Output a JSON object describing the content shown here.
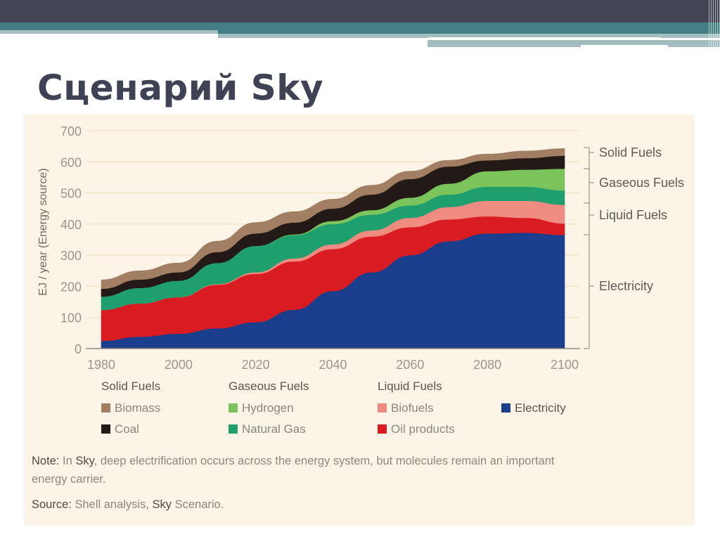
{
  "slide": {
    "title": "Сценарий Sky"
  },
  "colors": {
    "biomass": "#a27e63",
    "coal": "#231a17",
    "hydrogen": "#7bc35b",
    "natural_gas": "#1f9e6e",
    "biofuels": "#f08b82",
    "oil_products": "#d81c22",
    "electricity": "#1b3e8c",
    "panel_bg": "#fcf5e7",
    "header_dark": "#434555",
    "header_teal": "#437f84"
  },
  "legend": {
    "groups": [
      {
        "label": "Solid Fuels",
        "items": [
          {
            "label": "Biomass",
            "key": "biomass"
          },
          {
            "label": "Coal",
            "key": "coal"
          }
        ]
      },
      {
        "label": "Gaseous Fuels",
        "items": [
          {
            "label": "Hydrogen",
            "key": "hydrogen"
          },
          {
            "label": "Natural Gas",
            "key": "natural_gas"
          }
        ]
      },
      {
        "label": "Liquid Fuels",
        "items": [
          {
            "label": "Biofuels",
            "key": "biofuels"
          },
          {
            "label": "Oil products",
            "key": "oil_products"
          }
        ]
      },
      {
        "label": "",
        "items": [
          {
            "label": "Electricity",
            "key": "electricity"
          }
        ]
      }
    ]
  },
  "right_brackets": [
    "Solid Fuels",
    "Gaseous Fuels",
    "Liquid Fuels",
    "Electricity"
  ],
  "note": {
    "prefix": "Note:",
    "t1": " In ",
    "sky": "Sky",
    "t2": ", deep electrification occurs across the energy system, but molecules remain an important",
    "t3": "energy carrier."
  },
  "source": {
    "prefix": "Source:",
    "t1": " Shell analysis, ",
    "sky": "Sky",
    "t2": " Scenario."
  },
  "chart_data": {
    "type": "area",
    "stacked": true,
    "title": "",
    "xlabel": "",
    "ylabel": "EJ / year (Energy source)",
    "x": [
      1980,
      1990,
      2000,
      2010,
      2020,
      2030,
      2040,
      2050,
      2060,
      2070,
      2080,
      2090,
      2100
    ],
    "xticks": [
      1980,
      2000,
      2020,
      2040,
      2060,
      2080,
      2100
    ],
    "yticks": [
      0,
      100,
      200,
      300,
      400,
      500,
      600,
      700
    ],
    "ylim": [
      0,
      700
    ],
    "grid": true,
    "legend_position": "bottom",
    "series": [
      {
        "name": "Electricity",
        "group": "Electricity",
        "values": [
          25,
          38,
          48,
          65,
          85,
          125,
          185,
          245,
          300,
          345,
          370,
          372,
          365
        ]
      },
      {
        "name": "Oil products",
        "group": "Liquid Fuels",
        "values": [
          99,
          107,
          117,
          140,
          155,
          155,
          135,
          115,
          90,
          70,
          55,
          48,
          37
        ]
      },
      {
        "name": "Biofuels",
        "group": "Liquid Fuels",
        "values": [
          0,
          0,
          0,
          2,
          5,
          10,
          15,
          20,
          30,
          40,
          50,
          55,
          60
        ]
      },
      {
        "name": "Natural Gas",
        "group": "Gaseous Fuels",
        "values": [
          43,
          50,
          53,
          68,
          85,
          75,
          65,
          50,
          40,
          40,
          45,
          45,
          46
        ]
      },
      {
        "name": "Hydrogen",
        "group": "Gaseous Fuels",
        "values": [
          0,
          0,
          0,
          0,
          0,
          2,
          10,
          15,
          25,
          35,
          50,
          55,
          70
        ]
      },
      {
        "name": "Coal",
        "group": "Solid Fuels",
        "values": [
          25,
          27,
          27,
          35,
          40,
          38,
          40,
          50,
          60,
          55,
          35,
          37,
          42
        ]
      },
      {
        "name": "Biomass",
        "group": "Solid Fuels",
        "values": [
          29,
          28,
          30,
          35,
          35,
          35,
          30,
          30,
          25,
          20,
          20,
          23,
          23
        ]
      }
    ],
    "annotations": [
      "Solid Fuels",
      "Gaseous Fuels",
      "Liquid Fuels",
      "Electricity"
    ]
  }
}
